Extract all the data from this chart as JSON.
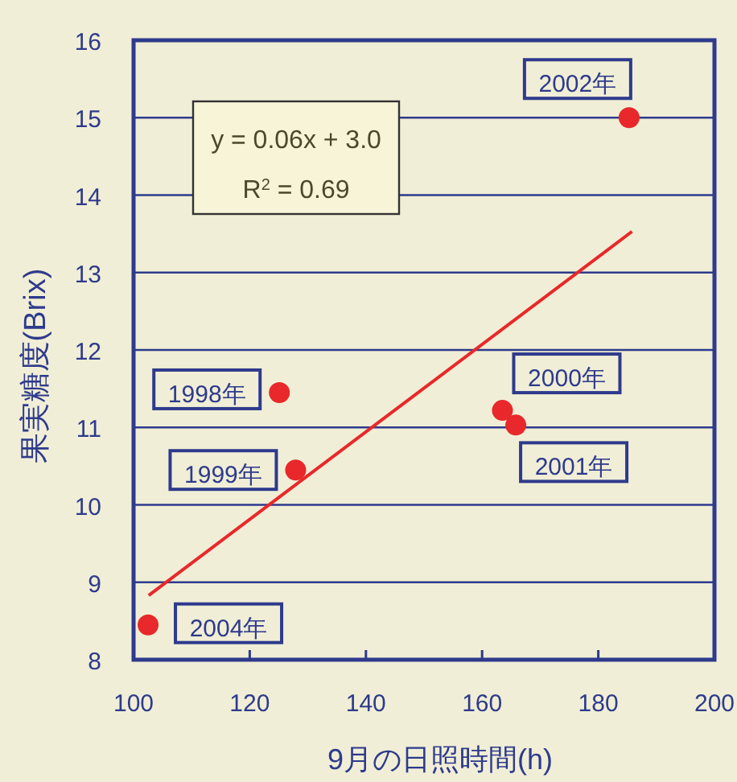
{
  "chart_data": {
    "type": "scatter",
    "xlabel": "9月の日照時間(h)",
    "ylabel": "果実糖度(Brix)",
    "xlim": [
      100,
      200
    ],
    "xticks": [
      100,
      120,
      140,
      160,
      180,
      200
    ],
    "ylim": [
      8,
      16
    ],
    "yticks": [
      8,
      9,
      10,
      11,
      12,
      13,
      14,
      15,
      16
    ],
    "grid": "y",
    "series": [
      {
        "color": "#e8282a",
        "marker": "circle",
        "x": [
          102.5,
          125.1,
          127.9,
          163.5,
          165.8,
          185.3
        ],
        "values": [
          8.45,
          11.45,
          10.45,
          11.22,
          11.03,
          15.0
        ]
      },
      {
        "type": "line",
        "color": "#e8282a",
        "x": [
          102.6,
          185.8
        ],
        "values": [
          8.83,
          13.53
        ],
        "line_style": "solid"
      }
    ],
    "annotations": [
      {
        "text": "2004年",
        "x": 102.5,
        "y": 8.45
      },
      {
        "text": "1998年",
        "x": 125.1,
        "y": 11.45
      },
      {
        "text": "1999年",
        "x": 127.9,
        "y": 10.45
      },
      {
        "text": "2000年",
        "x": 163.5,
        "y": 11.22
      },
      {
        "text": "2001年",
        "x": 165.8,
        "y": 11.03
      },
      {
        "text": "2002年",
        "x": 185.3,
        "y": 15.0
      },
      "y = 0.06x + 3.0\nR$^{2}$ = 0.69"
    ]
  }
}
